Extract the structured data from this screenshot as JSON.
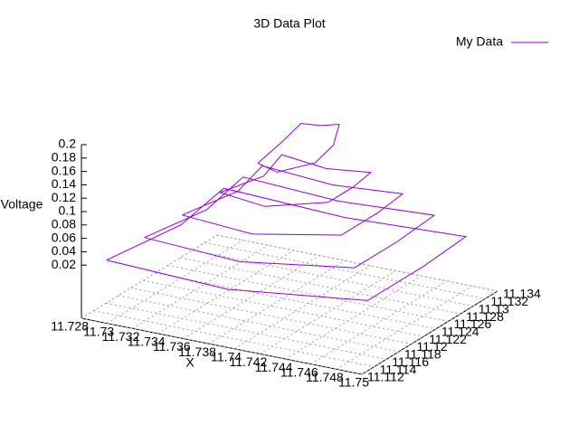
{
  "chart_data": {
    "type": "line3d",
    "title": "3D Data Plot",
    "x_label": "X",
    "z_label": "Voltage",
    "xlim": [
      11.728,
      11.75
    ],
    "ylim": [
      11.112,
      11.134
    ],
    "zlim": [
      0,
      0.2
    ],
    "xticks": [
      11.728,
      11.73,
      11.732,
      11.734,
      11.736,
      11.738,
      11.74,
      11.742,
      11.744,
      11.746,
      11.748,
      11.75
    ],
    "yticks": [
      11.112,
      11.114,
      11.116,
      11.118,
      11.12,
      11.122,
      11.124,
      11.126,
      11.128,
      11.13,
      11.132,
      11.134
    ],
    "zticks": [
      0.02,
      0.04,
      0.06,
      0.08,
      0.1,
      0.12,
      0.14,
      0.16,
      0.18,
      0.2
    ],
    "grid": true,
    "legend": "top-right",
    "series": [
      {
        "name": "My Data",
        "color": "#9400d3",
        "x": [
          11.729,
          11.739,
          11.749,
          11.749,
          11.748,
          11.739,
          11.729,
          11.73,
          11.729,
          null,
          11.731,
          11.739,
          11.747,
          11.747,
          11.746,
          11.739,
          11.731,
          11.732,
          11.731,
          null,
          11.733,
          11.739,
          11.745,
          11.745,
          11.744,
          11.739,
          11.733,
          11.734,
          11.733,
          null,
          11.735,
          11.739,
          11.743,
          11.743,
          11.742,
          11.739,
          11.735,
          11.736,
          11.735,
          null,
          11.737,
          11.739,
          11.741,
          11.741,
          11.74,
          11.739,
          11.737,
          11.737,
          11.737
        ],
        "y": [
          11.114,
          11.113,
          11.115,
          11.124,
          11.133,
          11.132,
          11.133,
          11.124,
          11.114,
          null,
          11.116,
          11.115,
          11.117,
          11.124,
          11.132,
          11.131,
          11.132,
          11.124,
          11.116,
          null,
          11.118,
          11.117,
          11.119,
          11.125,
          11.131,
          11.13,
          11.131,
          11.125,
          11.118,
          null,
          11.12,
          11.119,
          11.121,
          11.125,
          11.13,
          11.129,
          11.13,
          11.125,
          11.12,
          null,
          11.122,
          11.121,
          11.123,
          11.126,
          11.129,
          11.128,
          11.129,
          11.126,
          11.122
        ],
        "z": [
          0.02,
          0.02,
          0.03,
          0.03,
          0.02,
          0.02,
          0.02,
          0.02,
          0.02,
          null,
          0.05,
          0.05,
          0.06,
          0.06,
          0.05,
          0.05,
          0.05,
          0.05,
          0.05,
          null,
          0.08,
          0.08,
          0.09,
          0.09,
          0.08,
          0.08,
          0.08,
          0.08,
          0.08,
          null,
          0.11,
          0.11,
          0.12,
          0.12,
          0.11,
          0.11,
          0.11,
          0.11,
          0.11,
          null,
          0.15,
          0.15,
          0.16,
          0.17,
          0.18,
          0.18,
          0.17,
          0.16,
          0.15
        ]
      }
    ]
  }
}
